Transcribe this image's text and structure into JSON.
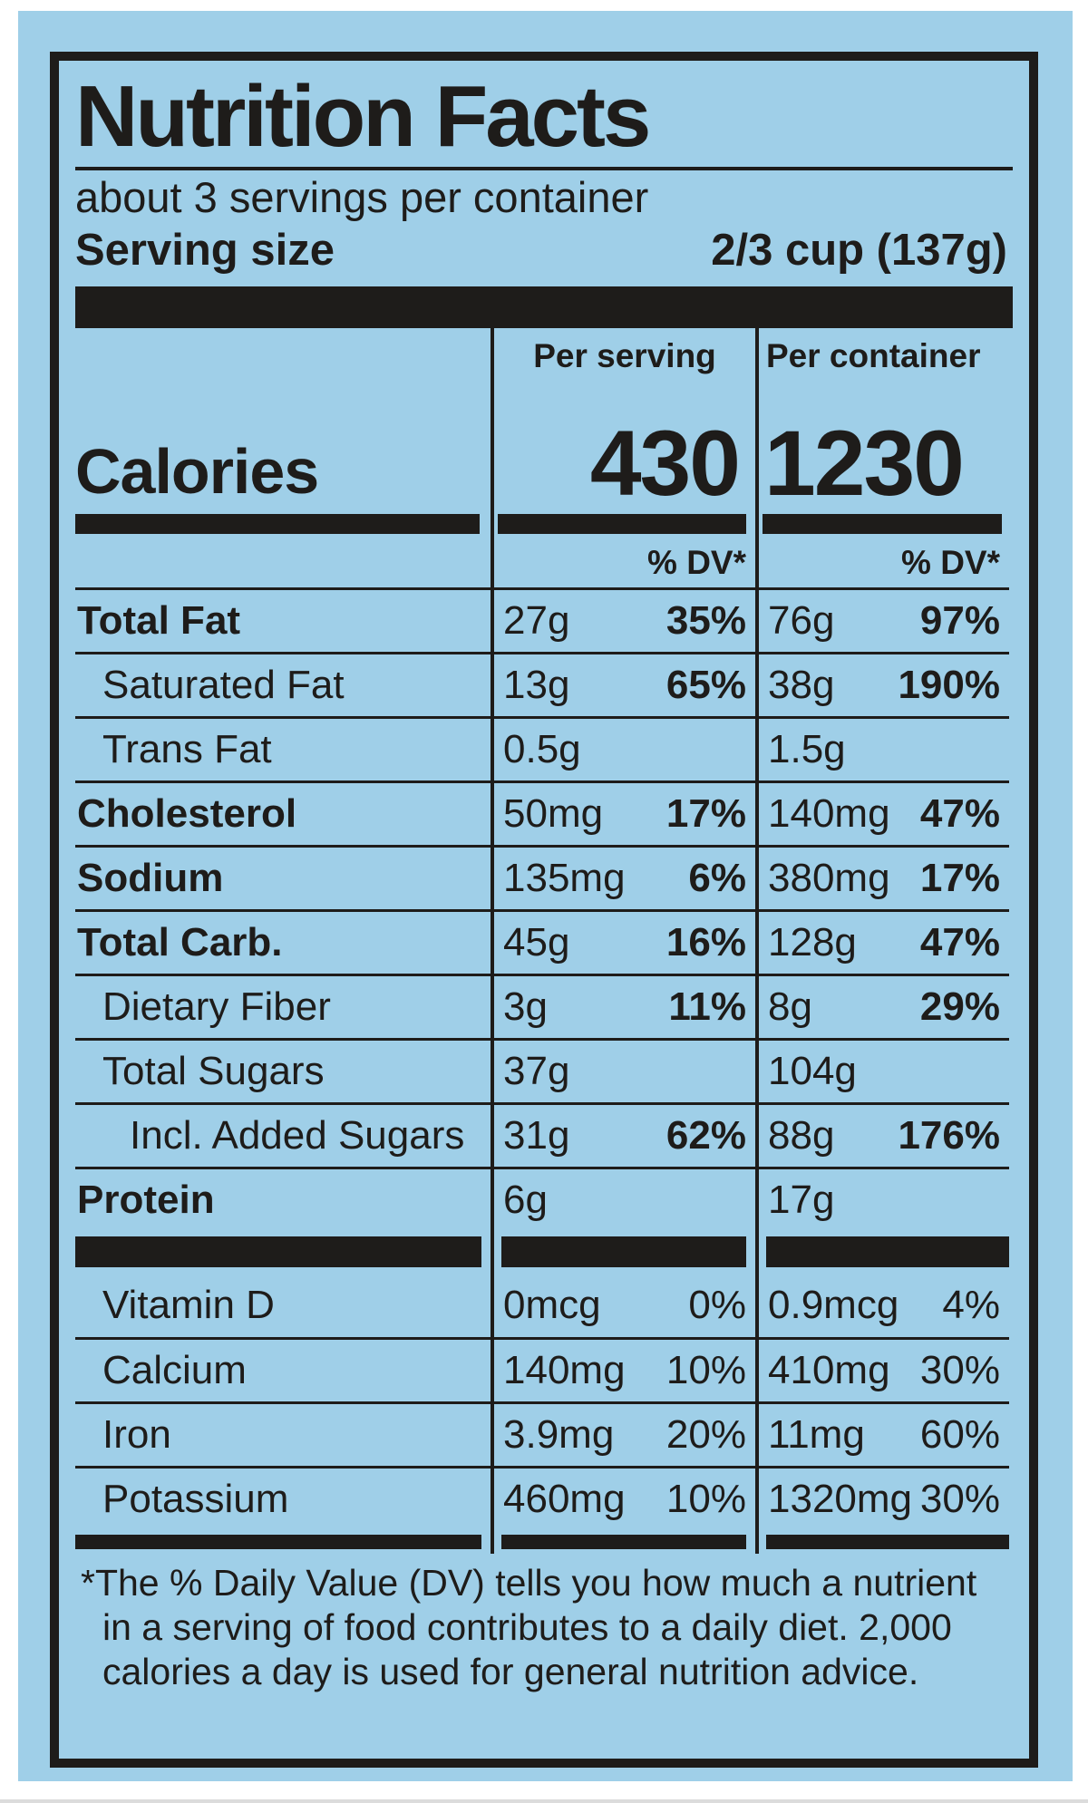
{
  "label": {
    "title": "Nutrition Facts",
    "servings_per_container": "about 3 servings per container",
    "serving_size_label": "Serving size",
    "serving_size_value": "2/3 cup  (137g)",
    "column_headers": {
      "per_serving": "Per serving",
      "per_container": "Per container"
    },
    "calories_label": "Calories",
    "calories": {
      "per_serving": "430",
      "per_container": "1230"
    },
    "dv_header": "% DV*",
    "rows": [
      {
        "name": "Total Fat",
        "ps_amt": "27g",
        "ps_dv": "35%",
        "pc_amt": "76g",
        "pc_dv": "97%"
      },
      {
        "name": "Saturated Fat",
        "ps_amt": "13g",
        "ps_dv": "65%",
        "pc_amt": "38g",
        "pc_dv": "190%"
      },
      {
        "name": "Trans Fat",
        "ps_amt": "0.5g",
        "ps_dv": "",
        "pc_amt": "1.5g",
        "pc_dv": ""
      },
      {
        "name": "Cholesterol",
        "ps_amt": "50mg",
        "ps_dv": "17%",
        "pc_amt": "140mg",
        "pc_dv": "47%"
      },
      {
        "name": "Sodium",
        "ps_amt": "135mg",
        "ps_dv": "6%",
        "pc_amt": "380mg",
        "pc_dv": "17%"
      },
      {
        "name": "Total Carb.",
        "ps_amt": "45g",
        "ps_dv": "16%",
        "pc_amt": "128g",
        "pc_dv": "47%"
      },
      {
        "name": "Dietary Fiber",
        "ps_amt": "3g",
        "ps_dv": "11%",
        "pc_amt": "8g",
        "pc_dv": "29%"
      },
      {
        "name": "Total Sugars",
        "ps_amt": "37g",
        "ps_dv": "",
        "pc_amt": "104g",
        "pc_dv": ""
      },
      {
        "name": "Incl. Added Sugars",
        "ps_amt": "31g",
        "ps_dv": "62%",
        "pc_amt": "88g",
        "pc_dv": "176%"
      },
      {
        "name": "Protein",
        "ps_amt": "6g",
        "ps_dv": "",
        "pc_amt": "17g",
        "pc_dv": ""
      }
    ],
    "vitamins": [
      {
        "name": "Vitamin D",
        "ps_amt": "0mcg",
        "ps_dv": "0%",
        "pc_amt": "0.9mcg",
        "pc_dv": "4%"
      },
      {
        "name": "Calcium",
        "ps_amt": "140mg",
        "ps_dv": "10%",
        "pc_amt": "410mg",
        "pc_dv": "30%"
      },
      {
        "name": "Iron",
        "ps_amt": "3.9mg",
        "ps_dv": "20%",
        "pc_amt": "11mg",
        "pc_dv": "60%"
      },
      {
        "name": "Potassium",
        "ps_amt": "460mg",
        "ps_dv": "10%",
        "pc_amt": "1320mg",
        "pc_dv": "30%"
      }
    ],
    "footnote": {
      "line1": "*The % Daily Value (DV) tells you how much a nutrient",
      "line2": "in a serving of food contributes to a daily diet. 2,000",
      "line3": "calories a day is used for general nutrition advice."
    },
    "colors": {
      "background_blue": "#9fcfe8",
      "ink": "#1e1c1a"
    }
  }
}
